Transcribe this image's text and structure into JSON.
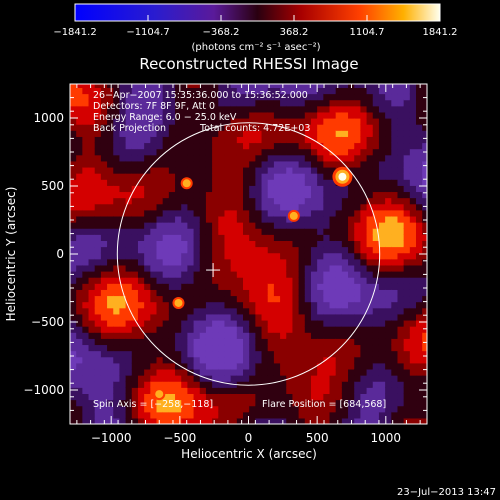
{
  "chart_data": {
    "type": "heatmap",
    "title": "Reconstructed RHESSI Image",
    "xlabel": "Heliocentric X (arcsec)",
    "ylabel": "Heliocentric Y (arcsec)",
    "xlim": [
      -1300,
      1300
    ],
    "ylim": [
      -1250,
      1250
    ],
    "x_ticks": [
      -1000,
      -500,
      0,
      500,
      1000
    ],
    "y_ticks": [
      -1000,
      -500,
      0,
      500,
      1000
    ],
    "x_tick_labels": [
      "−1000",
      "−500",
      "0",
      "500",
      "1000"
    ],
    "y_tick_labels": [
      "−1000",
      "−500",
      "0",
      "500",
      "1000"
    ],
    "colorbar": {
      "ticks": [
        -1841.2,
        -1104.7,
        -368.2,
        368.2,
        1104.7,
        1841.2
      ],
      "tick_labels": [
        "−1841.2",
        "−1104.7",
        "−368.2",
        "368.2",
        "1104.7",
        "1841.2"
      ],
      "range": [
        -1841.2,
        1841.2
      ],
      "unit_label": "(photons cm⁻² s⁻¹ asec⁻²)"
    },
    "annotations": {
      "time_range": "26−Apr−2007 15:35:36.000 to 15:36:52.000",
      "detectors": "Detectors: 7F 8F 9F, Att 0",
      "energy_range": "Energy Range: 6.0 − 25.0 keV",
      "method": "Back Projection",
      "total_counts": "Total counts: 4.72E+03",
      "spin_axis": "Spin Axis = [−258,−118]",
      "flare_position": "Flare Position = [684,568]"
    },
    "spin_axis": [
      -258,
      -118
    ],
    "flare_position": [
      684,
      568
    ],
    "solar_disk": {
      "center": [
        0,
        0
      ],
      "radius": 960
    },
    "bright_sources": [
      {
        "x": 684,
        "y": 568,
        "value": 1841.2
      },
      {
        "x": -450,
        "y": 520,
        "value": 1100
      },
      {
        "x": -510,
        "y": -360,
        "value": 1050
      },
      {
        "x": 330,
        "y": 280,
        "value": 950
      },
      {
        "x": -650,
        "y": -1030,
        "value": 900
      }
    ]
  },
  "footer": {
    "timestamp": "23−Jul−2013 13:47"
  }
}
